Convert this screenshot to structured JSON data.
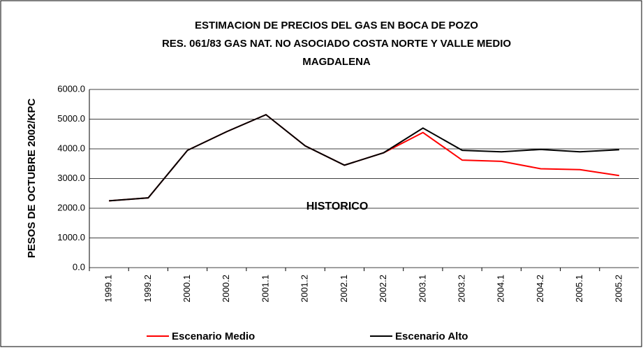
{
  "chart_data": {
    "type": "line",
    "title": [
      "ESTIMACION DE PRECIOS DEL GAS EN BOCA DE POZO",
      "RES. 061/83 GAS NAT. NO ASOCIADO COSTA NORTE Y VALLE MEDIO",
      "MAGDALENA"
    ],
    "y_label": "PESOS DE OCTUBRE 2002/KPC",
    "annotation": "HISTORICO",
    "categories": [
      "1999.1",
      "1999.2",
      "2000.1",
      "2000.2",
      "2001.1",
      "2001.2",
      "2002.1",
      "2002.2",
      "2003.1",
      "2003.2",
      "2004.1",
      "2004.2",
      "2005.1",
      "2005.2"
    ],
    "series": [
      {
        "name": "Escenario Medio",
        "color": "#ff0000",
        "values": [
          2250,
          2350,
          3950,
          4580,
          5150,
          4100,
          3450,
          3870,
          4550,
          3620,
          3580,
          3330,
          3300,
          3100
        ]
      },
      {
        "name": "Escenario Alto",
        "color": "#000000",
        "values": [
          2250,
          2350,
          3950,
          4580,
          5150,
          4100,
          3450,
          3870,
          4700,
          3950,
          3900,
          3980,
          3900,
          3970
        ]
      }
    ],
    "ylim": [
      0,
      6000
    ],
    "yticks": [
      {
        "value": 0,
        "label": "0.0"
      },
      {
        "value": 1000,
        "label": "1000.0"
      },
      {
        "value": 2000,
        "label": "2000.0"
      },
      {
        "value": 3000,
        "label": "3000.0"
      },
      {
        "value": 4000,
        "label": "4000.0"
      },
      {
        "value": 5000,
        "label": "5000.0"
      },
      {
        "value": 6000,
        "label": "6000.0"
      }
    ],
    "grid": true
  }
}
